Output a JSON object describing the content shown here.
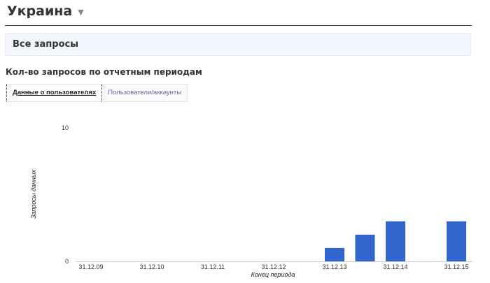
{
  "header": {
    "title": "Украина",
    "caret_icon": "triangle-down-icon"
  },
  "panel": {
    "title": "Все запросы"
  },
  "section": {
    "title": "Кол-во запросов по отчетным периодам"
  },
  "tabs": [
    {
      "label": "Данные о пользователях",
      "active": true
    },
    {
      "label": "Пользователи/аккаунты",
      "active": false
    }
  ],
  "chart_data": {
    "type": "bar",
    "xlabel": "Конец периода",
    "ylabel": "Запросы данных",
    "ylim": [
      0,
      10
    ],
    "yticks": [
      "0",
      "10"
    ],
    "categories": [
      "31.12.09",
      "",
      "31.12.10",
      "",
      "31.12.11",
      "",
      "31.12.12",
      "",
      "31.12.13",
      "",
      "31.12.14",
      "",
      "31.12.15"
    ],
    "values": [
      0,
      0,
      0,
      0,
      0,
      0,
      0,
      0,
      1,
      2,
      3,
      0,
      3
    ],
    "color": "#3366cc",
    "grid": false
  }
}
